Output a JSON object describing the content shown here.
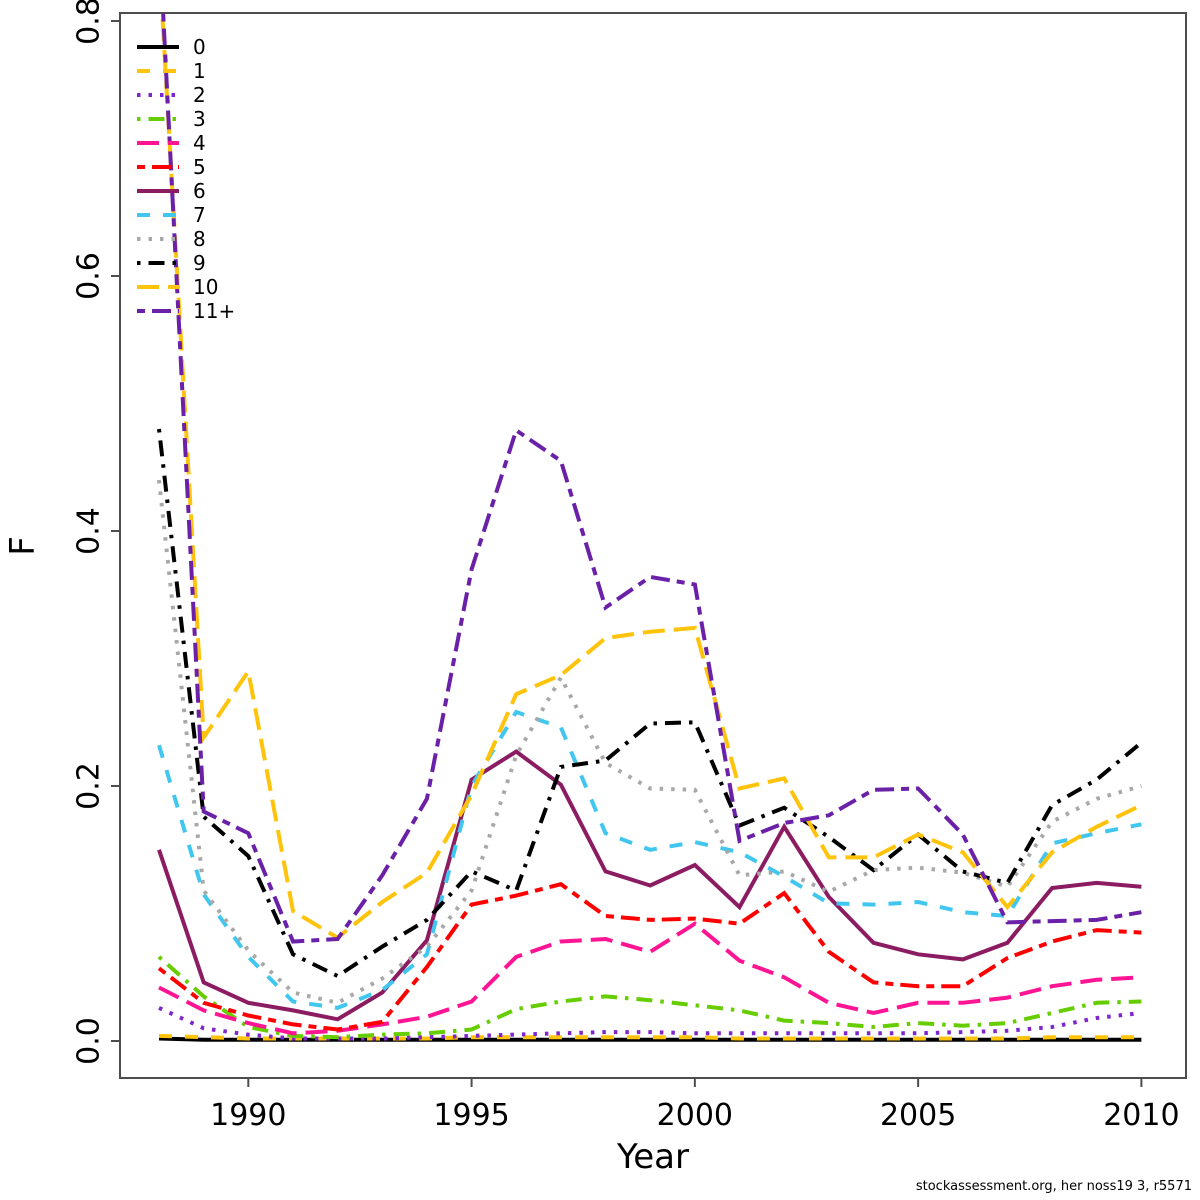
{
  "page": {
    "background": "#ffffff"
  },
  "footer": {
    "text": "stockassessment.org, her noss19 3, r5571"
  },
  "chart_data": {
    "type": "line",
    "title": "",
    "xlabel": "Year",
    "ylabel": "F",
    "xlim": [
      1987.12,
      2011.0
    ],
    "ylim": [
      -0.029,
      0.806
    ],
    "grid": false,
    "legend_position": "top-left",
    "x_ticks": [
      1990,
      1995,
      2000,
      2005,
      2010
    ],
    "y_ticks": [
      {
        "value": 0.0,
        "label": "0.0"
      },
      {
        "value": 0.2,
        "label": "0.2"
      },
      {
        "value": 0.4,
        "label": "0.4"
      },
      {
        "value": 0.6,
        "label": "0.6"
      },
      {
        "value": 0.8,
        "label": "0.8"
      }
    ],
    "x": [
      1988,
      1989,
      1990,
      1991,
      1992,
      1993,
      1994,
      1995,
      1996,
      1997,
      1998,
      1999,
      2000,
      2001,
      2002,
      2003,
      2004,
      2005,
      2006,
      2007,
      2008,
      2009,
      2010
    ],
    "series": [
      {
        "name": "0",
        "color": "#000000",
        "dash": "solid",
        "values": [
          0.002,
          0.001,
          0.001,
          0.001,
          0.001,
          0.001,
          0.001,
          0.001,
          0.001,
          0.001,
          0.001,
          0.001,
          0.001,
          0.001,
          0.001,
          0.001,
          0.001,
          0.001,
          0.001,
          0.001,
          0.001,
          0.001,
          0.001
        ]
      },
      {
        "name": "1",
        "color": "#FFC30B",
        "dash": "dashed",
        "values": [
          0.004,
          0.003,
          0.002,
          0.002,
          0.002,
          0.002,
          0.002,
          0.003,
          0.003,
          0.003,
          0.003,
          0.003,
          0.003,
          0.002,
          0.002,
          0.002,
          0.002,
          0.002,
          0.002,
          0.002,
          0.003,
          0.003,
          0.003
        ]
      },
      {
        "name": "2",
        "color": "#7D26CD",
        "dash": "dotted",
        "values": [
          0.026,
          0.01,
          0.005,
          0.002,
          0.002,
          0.002,
          0.003,
          0.004,
          0.005,
          0.006,
          0.007,
          0.007,
          0.006,
          0.006,
          0.006,
          0.006,
          0.006,
          0.006,
          0.007,
          0.008,
          0.011,
          0.018,
          0.022
        ]
      },
      {
        "name": "3",
        "color": "#66CD00",
        "dash": "dotdash",
        "values": [
          0.066,
          0.035,
          0.011,
          0.004,
          0.003,
          0.005,
          0.006,
          0.009,
          0.025,
          0.031,
          0.035,
          0.032,
          0.028,
          0.024,
          0.016,
          0.014,
          0.011,
          0.014,
          0.012,
          0.014,
          0.022,
          0.03,
          0.031
        ]
      },
      {
        "name": "4",
        "color": "#FF1493",
        "dash": "longdash",
        "values": [
          0.042,
          0.024,
          0.014,
          0.006,
          0.008,
          0.013,
          0.019,
          0.031,
          0.066,
          0.078,
          0.08,
          0.07,
          0.092,
          0.063,
          0.05,
          0.03,
          0.022,
          0.03,
          0.03,
          0.034,
          0.043,
          0.048,
          0.05
        ]
      },
      {
        "name": "5",
        "color": "#FF0000",
        "dash": "twodash",
        "values": [
          0.057,
          0.03,
          0.02,
          0.013,
          0.009,
          0.015,
          0.058,
          0.107,
          0.114,
          0.123,
          0.098,
          0.095,
          0.096,
          0.092,
          0.116,
          0.07,
          0.046,
          0.043,
          0.043,
          0.065,
          0.078,
          0.087,
          0.085
        ]
      },
      {
        "name": "6",
        "color": "#8B1C62",
        "dash": "solid",
        "values": [
          0.15,
          0.046,
          0.03,
          0.024,
          0.017,
          0.038,
          0.079,
          0.205,
          0.227,
          0.201,
          0.133,
          0.122,
          0.138,
          0.105,
          0.168,
          0.113,
          0.077,
          0.068,
          0.064,
          0.077,
          0.12,
          0.124,
          0.121
        ]
      },
      {
        "name": "7",
        "color": "#41C6F0",
        "dash": "dashed",
        "values": [
          0.232,
          0.115,
          0.066,
          0.031,
          0.026,
          0.04,
          0.068,
          0.2,
          0.258,
          0.246,
          0.163,
          0.15,
          0.156,
          0.148,
          0.129,
          0.108,
          0.107,
          0.109,
          0.101,
          0.098,
          0.155,
          0.163,
          0.17
        ]
      },
      {
        "name": "8",
        "color": "#A8A8A8",
        "dash": "dotted",
        "values": [
          0.44,
          0.118,
          0.071,
          0.038,
          0.03,
          0.049,
          0.074,
          0.118,
          0.224,
          0.285,
          0.218,
          0.198,
          0.197,
          0.13,
          0.133,
          0.117,
          0.134,
          0.136,
          0.132,
          0.121,
          0.172,
          0.19,
          0.2
        ]
      },
      {
        "name": "9",
        "color": "#000000",
        "dash": "dotdash",
        "values": [
          0.48,
          0.176,
          0.145,
          0.068,
          0.051,
          0.074,
          0.095,
          0.133,
          0.118,
          0.215,
          0.22,
          0.249,
          0.25,
          0.169,
          0.183,
          0.16,
          0.134,
          0.162,
          0.133,
          0.124,
          0.185,
          0.205,
          0.234
        ]
      },
      {
        "name": "10",
        "color": "#FFC30B",
        "dash": "longdash",
        "values": [
          0.85,
          0.238,
          0.29,
          0.102,
          0.081,
          0.109,
          0.132,
          0.193,
          0.272,
          0.287,
          0.316,
          0.321,
          0.324,
          0.198,
          0.206,
          0.144,
          0.144,
          0.162,
          0.148,
          0.105,
          0.148,
          0.168,
          0.185
        ]
      },
      {
        "name": "11+",
        "color": "#6A21A8",
        "dash": "twodash",
        "values": [
          0.87,
          0.18,
          0.163,
          0.078,
          0.08,
          0.13,
          0.19,
          0.37,
          0.479,
          0.455,
          0.34,
          0.364,
          0.358,
          0.157,
          0.171,
          0.177,
          0.197,
          0.198,
          0.162,
          0.093,
          0.094,
          0.095,
          0.101
        ]
      }
    ]
  }
}
